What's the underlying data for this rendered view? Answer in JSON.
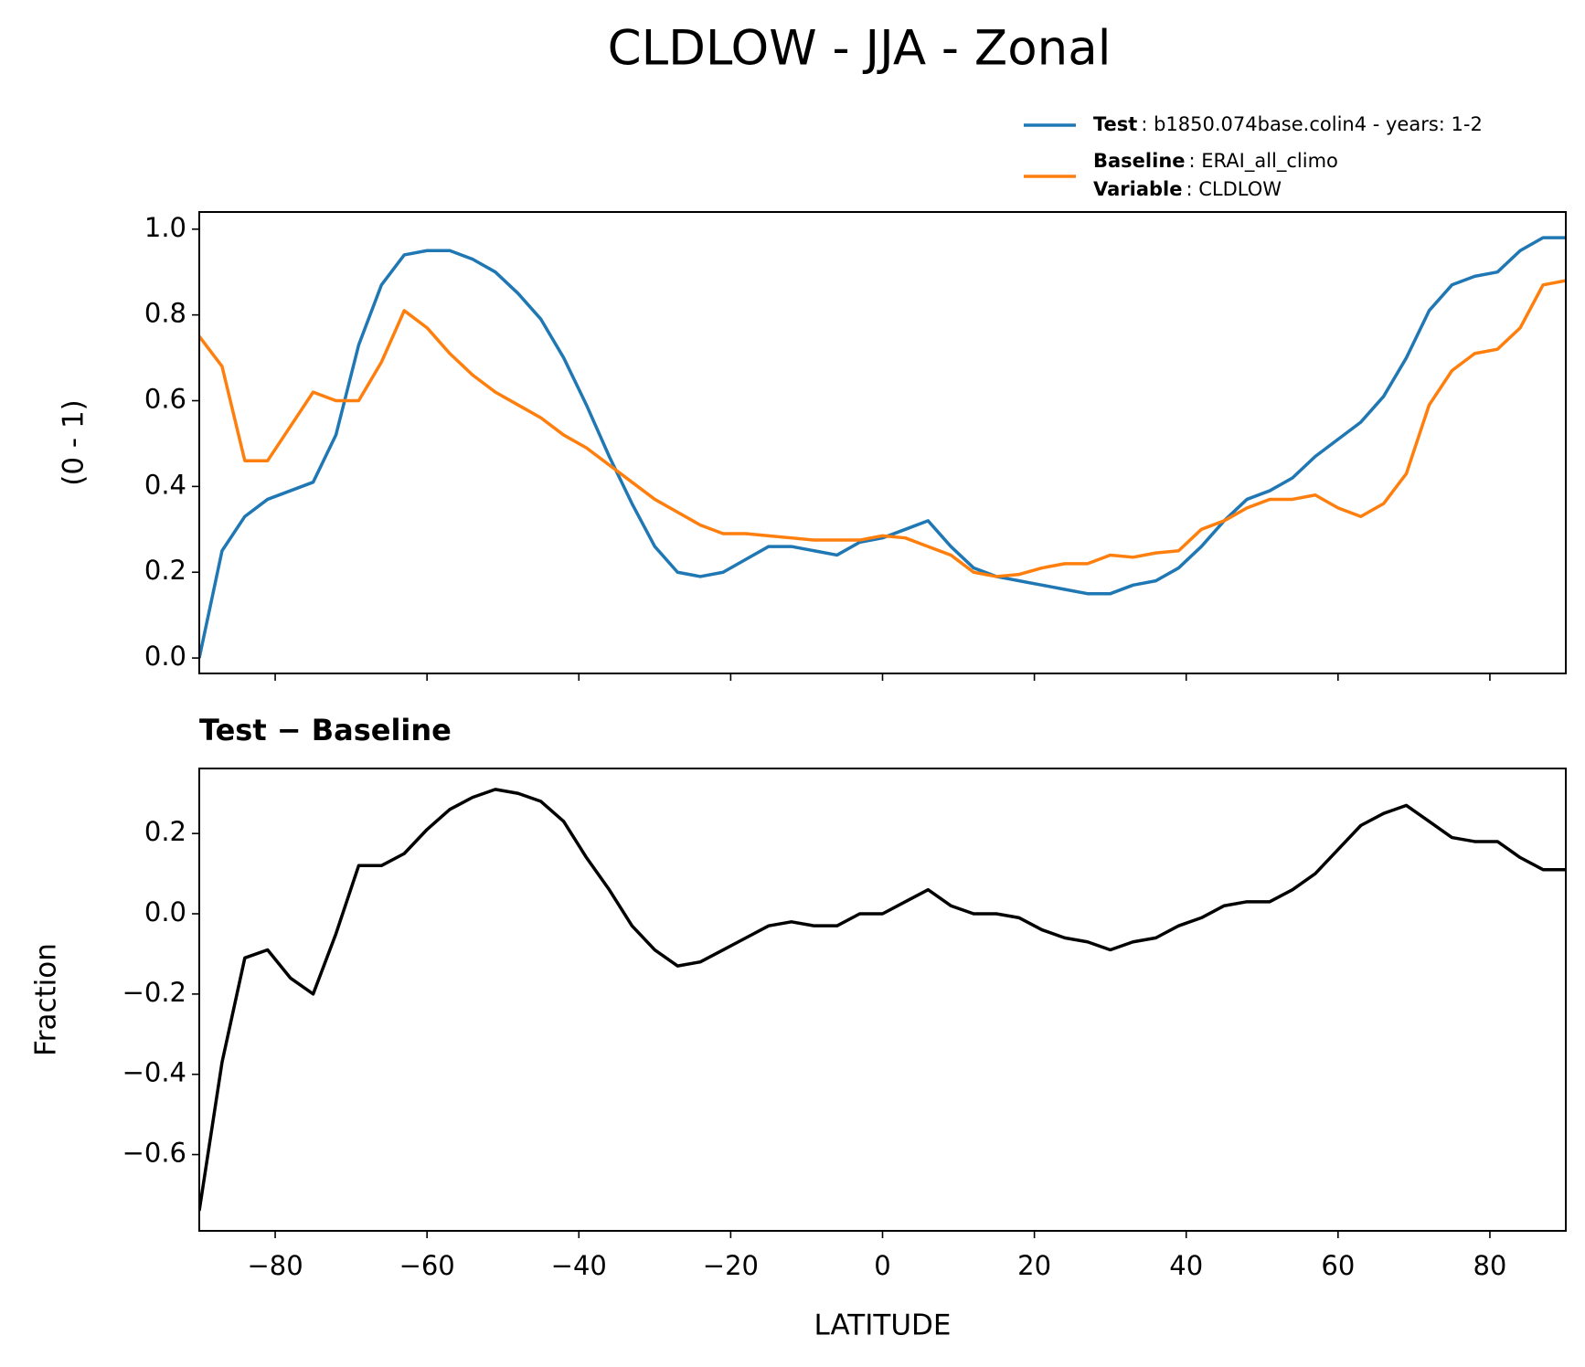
{
  "title": "CLDLOW - JJA - Zonal",
  "chart_data": [
    {
      "type": "line",
      "ylabel": "(0 - 1)",
      "legend": "upper right",
      "variable": {
        "name": "Variable",
        "value": ": CLDLOW"
      },
      "x": [
        -90,
        -87,
        -84,
        -81,
        -78,
        -75,
        -72,
        -69,
        -66,
        -63,
        -60,
        -57,
        -54,
        -51,
        -48,
        -45,
        -42,
        -39,
        -36,
        -33,
        -30,
        -27,
        -24,
        -21,
        -18,
        -15,
        -12,
        -9,
        -6,
        -3,
        0,
        3,
        6,
        9,
        12,
        15,
        18,
        21,
        24,
        27,
        30,
        33,
        36,
        39,
        42,
        45,
        48,
        51,
        54,
        57,
        60,
        63,
        66,
        69,
        72,
        75,
        78,
        81,
        84,
        87,
        90
      ],
      "series": [
        {
          "name": "Test",
          "description": ": b1850.074base.colin4 - years: 1-2",
          "color": "#1f77b4",
          "values": [
            0.0,
            0.25,
            0.33,
            0.37,
            0.39,
            0.41,
            0.52,
            0.73,
            0.87,
            0.94,
            0.95,
            0.95,
            0.93,
            0.9,
            0.85,
            0.79,
            0.7,
            0.59,
            0.47,
            0.36,
            0.26,
            0.2,
            0.19,
            0.2,
            0.23,
            0.26,
            0.26,
            0.25,
            0.24,
            0.27,
            0.28,
            0.3,
            0.32,
            0.26,
            0.21,
            0.19,
            0.18,
            0.17,
            0.16,
            0.15,
            0.15,
            0.17,
            0.18,
            0.21,
            0.26,
            0.32,
            0.37,
            0.39,
            0.42,
            0.47,
            0.51,
            0.55,
            0.61,
            0.7,
            0.81,
            0.87,
            0.89,
            0.9,
            0.95,
            0.98,
            0.98
          ]
        },
        {
          "name": "Baseline",
          "description": ": ERAI_all_climo",
          "color": "#ff7f0e",
          "values": [
            0.75,
            0.68,
            0.46,
            0.46,
            0.54,
            0.62,
            0.6,
            0.6,
            0.69,
            0.81,
            0.77,
            0.71,
            0.66,
            0.62,
            0.59,
            0.56,
            0.52,
            0.49,
            0.45,
            0.41,
            0.37,
            0.34,
            0.31,
            0.29,
            0.29,
            0.285,
            0.28,
            0.275,
            0.275,
            0.275,
            0.285,
            0.28,
            0.26,
            0.24,
            0.2,
            0.19,
            0.195,
            0.21,
            0.22,
            0.22,
            0.24,
            0.235,
            0.245,
            0.25,
            0.3,
            0.32,
            0.35,
            0.37,
            0.37,
            0.38,
            0.35,
            0.33,
            0.36,
            0.43,
            0.59,
            0.67,
            0.71,
            0.72,
            0.77,
            0.87,
            0.88
          ]
        }
      ],
      "xlim": [
        -90,
        90
      ],
      "xticks": [
        -80,
        -60,
        -40,
        -20,
        0,
        20,
        40,
        60,
        80
      ],
      "ylim": [
        -0.036,
        1.04
      ],
      "yticks": [
        {
          "value": 0,
          "label": "0.0"
        },
        0.2,
        0.4,
        0.6,
        0.8,
        {
          "value": 1,
          "label": "1.0"
        }
      ]
    },
    {
      "type": "line",
      "title": "Test − Baseline",
      "ylabel": "Fraction",
      "xlabel": "LATITUDE",
      "x": [
        -90,
        -87,
        -84,
        -81,
        -78,
        -75,
        -72,
        -69,
        -66,
        -63,
        -60,
        -57,
        -54,
        -51,
        -48,
        -45,
        -42,
        -39,
        -36,
        -33,
        -30,
        -27,
        -24,
        -21,
        -18,
        -15,
        -12,
        -9,
        -6,
        -3,
        0,
        3,
        6,
        9,
        12,
        15,
        18,
        21,
        24,
        27,
        30,
        33,
        36,
        39,
        42,
        45,
        48,
        51,
        54,
        57,
        60,
        63,
        66,
        69,
        72,
        75,
        78,
        81,
        84,
        87,
        90
      ],
      "series": [
        {
          "color": "#000000",
          "values": [
            -0.74,
            -0.37,
            -0.11,
            -0.09,
            -0.16,
            -0.2,
            -0.05,
            0.12,
            0.12,
            0.15,
            0.21,
            0.26,
            0.29,
            0.31,
            0.3,
            0.28,
            0.23,
            0.14,
            0.06,
            -0.03,
            -0.09,
            -0.13,
            -0.12,
            -0.09,
            -0.06,
            -0.03,
            -0.02,
            -0.03,
            -0.03,
            0.0,
            0.0,
            0.03,
            0.06,
            0.02,
            0.0,
            0.0,
            -0.01,
            -0.04,
            -0.06,
            -0.07,
            -0.09,
            -0.07,
            -0.06,
            -0.03,
            -0.01,
            0.02,
            0.03,
            0.03,
            0.06,
            0.1,
            0.16,
            0.22,
            0.25,
            0.27,
            0.23,
            0.19,
            0.18,
            0.18,
            0.14,
            0.11,
            0.11
          ]
        }
      ],
      "xlim": [
        -90,
        90
      ],
      "xticks": [
        {
          "value": -80,
          "label": "−80"
        },
        {
          "value": -60,
          "label": "−60"
        },
        {
          "value": -40,
          "label": "−40"
        },
        {
          "value": -20,
          "label": "−20"
        },
        0,
        20,
        40,
        60,
        80
      ],
      "ylim": [
        -0.79,
        0.362
      ],
      "yticks": [
        {
          "value": -0.6,
          "label": "−0.6"
        },
        {
          "value": -0.4,
          "label": "−0.4"
        },
        {
          "value": -0.2,
          "label": "−0.2"
        },
        {
          "value": 0,
          "label": "0.0"
        },
        0.2
      ]
    }
  ]
}
